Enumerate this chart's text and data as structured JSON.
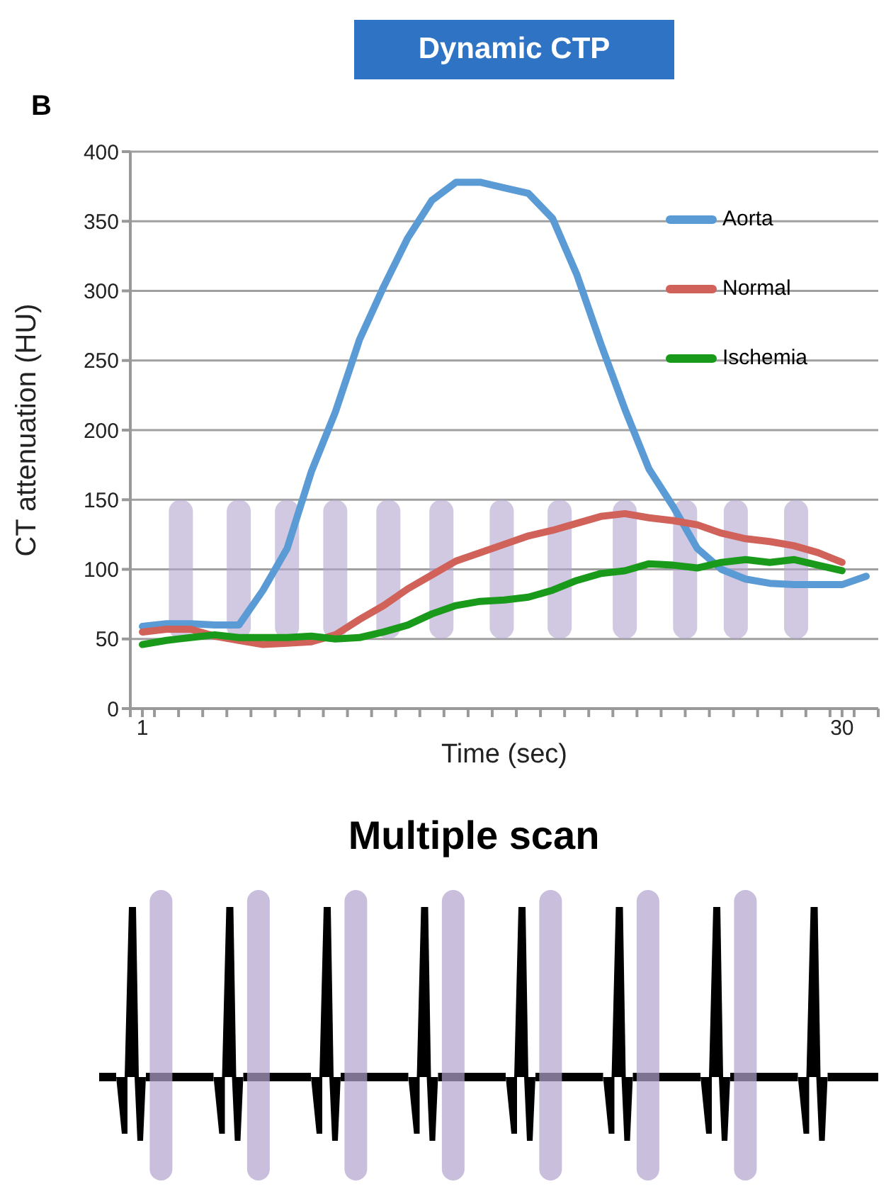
{
  "chart_data": {
    "type": "line",
    "title": "Dynamic CTP",
    "xlabel": "Time (sec)",
    "ylabel": "CT attenuation (HU)",
    "annotations": [
      "B",
      "Multiple scan"
    ],
    "x": [
      1,
      2,
      3,
      4,
      5,
      6,
      7,
      8,
      9,
      10,
      11,
      12,
      13,
      14,
      15,
      16,
      17,
      18,
      19,
      20,
      21,
      22,
      23,
      24,
      25,
      26,
      27,
      28,
      29,
      30,
      31
    ],
    "series": [
      {
        "name": "Aorta",
        "color": "#5b9bd5",
        "values": [
          59,
          61,
          61,
          60,
          60,
          85,
          115,
          170,
          213,
          265,
          303,
          338,
          365,
          378,
          378,
          374,
          370,
          352,
          312,
          262,
          215,
          172,
          145,
          115,
          100,
          93,
          90,
          89,
          89,
          89,
          95
        ]
      },
      {
        "name": "Normal",
        "color": "#d0625a",
        "values": [
          55,
          57,
          57,
          52,
          49,
          46,
          47,
          48,
          53,
          64,
          74,
          86,
          96,
          106,
          112,
          118,
          124,
          128,
          133,
          138,
          140,
          137,
          135,
          132,
          126,
          122,
          120,
          117,
          112,
          105,
          null
        ]
      },
      {
        "name": "Ischemia",
        "color": "#1a9a1a",
        "values": [
          46,
          49,
          51,
          53,
          51,
          51,
          51,
          52,
          50,
          51,
          55,
          60,
          68,
          74,
          77,
          78,
          80,
          85,
          92,
          97,
          99,
          104,
          103,
          101,
          105,
          107,
          105,
          107,
          103,
          99,
          null
        ]
      },
      {
        "type": "bar",
        "color": "#b3a3cf",
        "x": [
          2.6,
          5,
          7,
          9,
          11.2,
          13.4,
          15.9,
          18.3,
          21,
          23.5,
          25.6,
          28.1
        ],
        "base": [
          50,
          50,
          50,
          50,
          50,
          50,
          50,
          50,
          50,
          50,
          50,
          50
        ],
        "values": [
          100,
          100,
          100,
          100,
          100,
          100,
          100,
          100,
          100,
          100,
          100,
          100
        ]
      }
    ],
    "xlim": [
      0.5,
      31.5
    ],
    "xticks": [
      {
        "value": 0.5,
        "label": null
      },
      {
        "value": 1,
        "label": "1"
      },
      {
        "value": 1.5,
        "label": null
      },
      {
        "value": 2.5,
        "label": null
      },
      {
        "value": 3.5,
        "label": null
      },
      {
        "value": 4.5,
        "label": null
      },
      {
        "value": 5.5,
        "label": null
      },
      {
        "value": 6.5,
        "label": null
      },
      {
        "value": 7.5,
        "label": null
      },
      {
        "value": 8.5,
        "label": null
      },
      {
        "value": 9.5,
        "label": null
      },
      {
        "value": 10.5,
        "label": null
      },
      {
        "value": 11.5,
        "label": null
      },
      {
        "value": 12.5,
        "label": null
      },
      {
        "value": 13.5,
        "label": null
      },
      {
        "value": 14.5,
        "label": null
      },
      {
        "value": 15.5,
        "label": null
      },
      {
        "value": 16.5,
        "label": null
      },
      {
        "value": 17.5,
        "label": null
      },
      {
        "value": 18.5,
        "label": null
      },
      {
        "value": 19.5,
        "label": null
      },
      {
        "value": 20.5,
        "label": null
      },
      {
        "value": 21.5,
        "label": null
      },
      {
        "value": 22.5,
        "label": null
      },
      {
        "value": 23.5,
        "label": null
      },
      {
        "value": 24.5,
        "label": null
      },
      {
        "value": 25.5,
        "label": null
      },
      {
        "value": 26.5,
        "label": null
      },
      {
        "value": 27.5,
        "label": null
      },
      {
        "value": 28.5,
        "label": null
      },
      {
        "value": 29.5,
        "label": null
      },
      {
        "value": 30,
        "label": "30"
      },
      {
        "value": 30.5,
        "label": null
      },
      {
        "value": 31.5,
        "label": null
      }
    ],
    "ylim": [
      0,
      400
    ],
    "yticks": [
      0,
      50,
      100,
      150,
      200,
      250,
      300,
      350,
      400
    ],
    "grid": "y",
    "legend": "top right",
    "marker": "none",
    "line_style": "solid"
  }
}
